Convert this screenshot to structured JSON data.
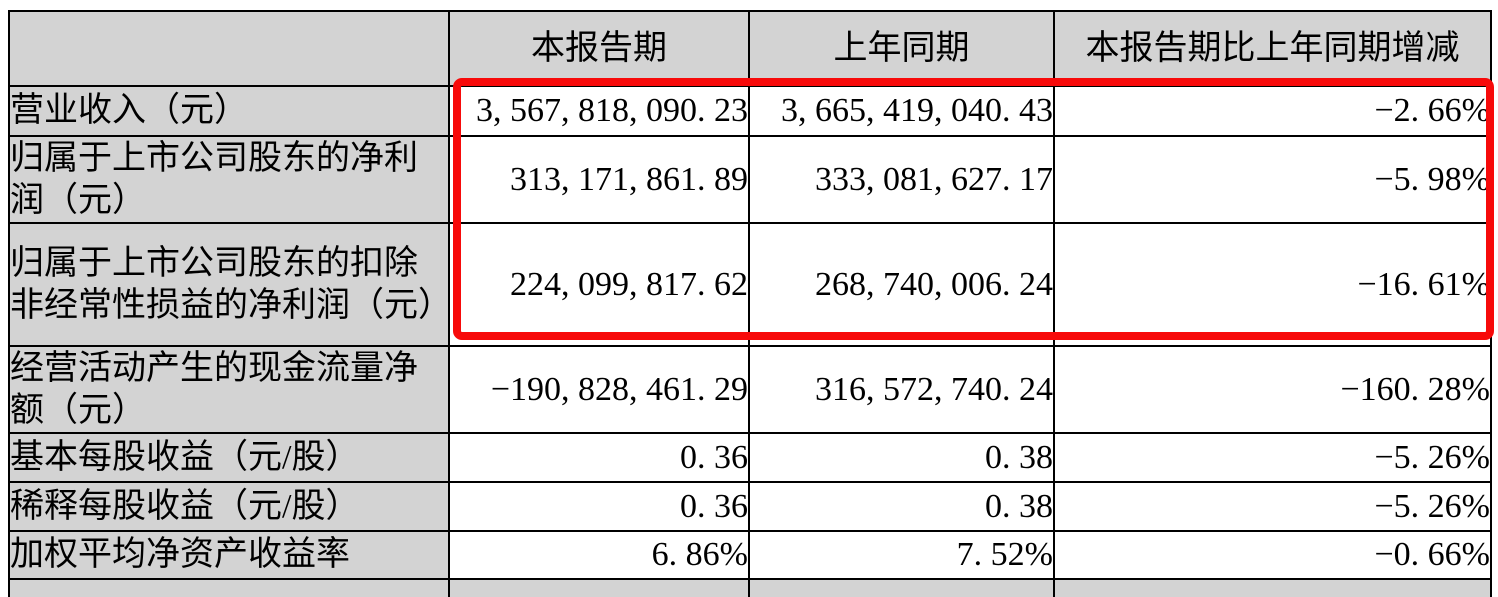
{
  "document": {
    "type": "financial-report-key-figures-table",
    "language": "zh-CN"
  },
  "colors": {
    "cell_gray": "#d3d3d3",
    "border_black": "#000000",
    "page_background": "#ffffff",
    "highlight_red": "#f70a0a"
  },
  "annotation": {
    "shape": "red-highlight-rectangle",
    "color": "#f70a0a",
    "covers": "value columns of first three rows"
  },
  "table": {
    "columns": [
      "",
      "本报告期",
      "上年同期",
      "本报告期比上年同期增减"
    ],
    "rows": [
      {
        "label": "营业收入（元）",
        "current": "3, 567, 818, 090. 23",
        "prior": "3, 665, 419, 040. 43",
        "change": "−2. 66%"
      },
      {
        "label": "归属于上市公司股东的净利润（元）",
        "current": "313, 171, 861. 89",
        "prior": "333, 081, 627. 17",
        "change": "−5. 98%"
      },
      {
        "label": "归属于上市公司股东的扣除非经常性损益的净利润（元）",
        "current": "224, 099, 817. 62",
        "prior": "268, 740, 006. 24",
        "change": "−16. 61%"
      },
      {
        "label": "经营活动产生的现金流量净额（元）",
        "current": "−190, 828, 461. 29",
        "prior": "316, 572, 740. 24",
        "change": "−160. 28%"
      },
      {
        "label": "基本每股收益（元/股）",
        "current": "0. 36",
        "prior": "0. 38",
        "change": "−5. 26%"
      },
      {
        "label": "稀释每股收益（元/股）",
        "current": "0. 36",
        "prior": "0. 38",
        "change": "−5. 26%"
      },
      {
        "label": "加权平均净资产收益率",
        "current": "6. 86%",
        "prior": "7. 52%",
        "change": "−0. 66%"
      }
    ]
  }
}
